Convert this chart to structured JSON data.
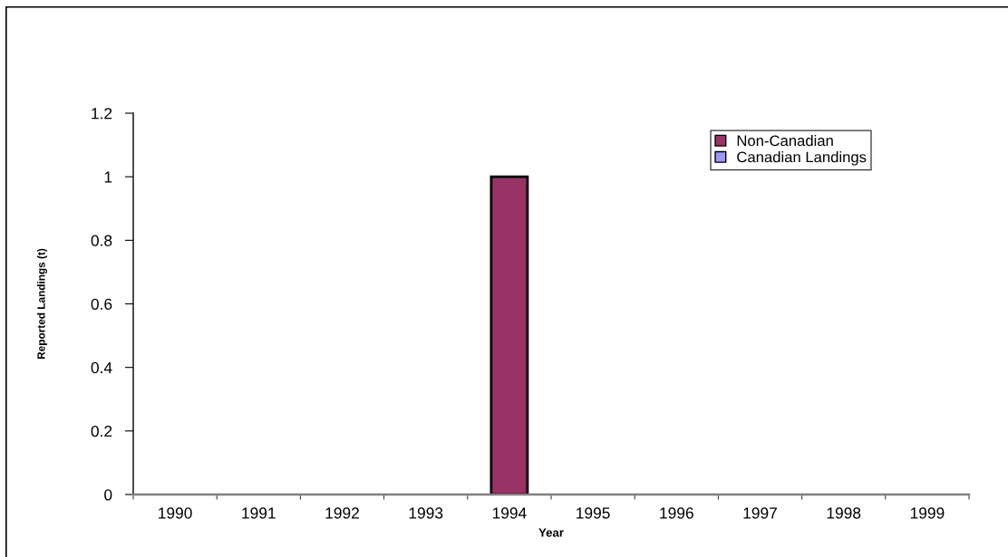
{
  "chart_data": {
    "type": "bar",
    "stacked": true,
    "xlabel": "Year",
    "ylabel": "Reported Landings (t)",
    "categories": [
      "1990",
      "1991",
      "1992",
      "1993",
      "1994",
      "1995",
      "1996",
      "1997",
      "1998",
      "1999"
    ],
    "series": [
      {
        "name": "Non-Canadian",
        "color": "#993366",
        "values": [
          0,
          0,
          0,
          0,
          1,
          0,
          0,
          0,
          0,
          0
        ]
      },
      {
        "name": "Canadian Landings",
        "color": "#9999ff",
        "values": [
          0,
          0,
          0,
          0,
          0,
          0,
          0,
          0,
          0,
          0
        ]
      }
    ],
    "ylim": [
      0,
      1.2
    ],
    "yticks": [
      0,
      0.2,
      0.4,
      0.6,
      0.8,
      1,
      1.2
    ],
    "grid": false,
    "legend": "top right"
  }
}
